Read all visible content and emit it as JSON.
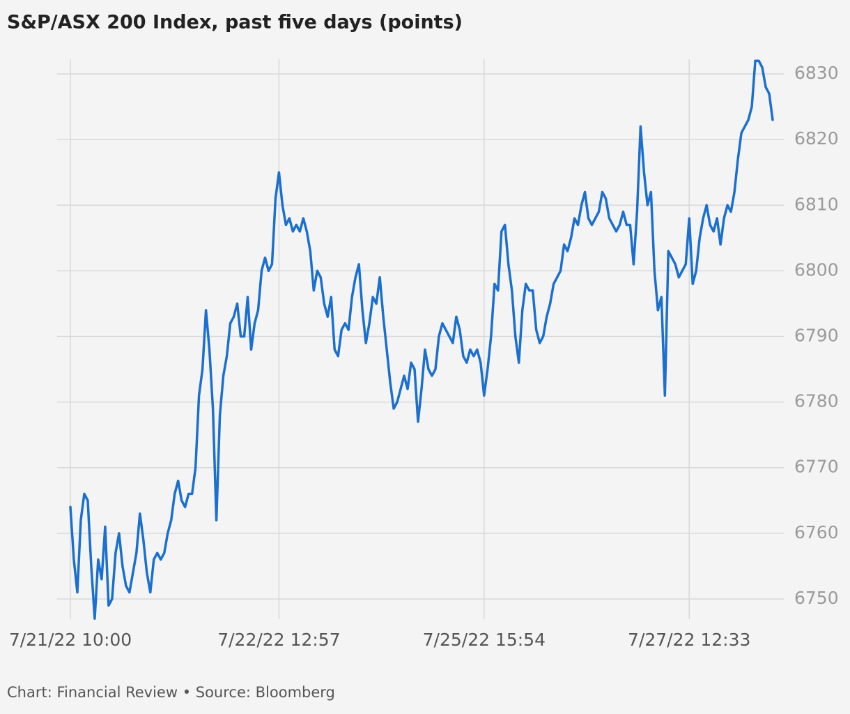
{
  "chart_data": {
    "type": "line",
    "title": "S&P/ASX 200 Index, past five days (points)",
    "footer": "Chart: Financial Review • Source: Bloomberg",
    "color": "#1a6fcf",
    "grid": true,
    "ylim": [
      6746,
      6833
    ],
    "yticks": [
      6750,
      6760,
      6770,
      6780,
      6790,
      6800,
      6810,
      6820,
      6830
    ],
    "categories": [
      "7/21/22 10:00",
      null,
      null,
      null,
      null,
      null,
      null,
      null,
      null,
      null,
      null,
      null,
      null,
      null,
      null,
      null,
      null,
      null,
      null,
      null,
      null,
      null,
      null,
      null,
      null,
      null,
      null,
      null,
      null,
      null,
      null,
      null,
      null,
      null,
      null,
      null,
      null,
      null,
      null,
      null,
      null,
      null,
      null,
      null,
      null,
      null,
      null,
      null,
      null,
      null,
      null,
      null,
      null,
      null,
      null,
      null,
      null,
      null,
      null,
      null,
      "7/22/22 12:57",
      null,
      null,
      null,
      null,
      null,
      null,
      null,
      null,
      null,
      null,
      null,
      null,
      null,
      null,
      null,
      null,
      null,
      null,
      null,
      null,
      null,
      null,
      null,
      null,
      null,
      null,
      null,
      null,
      null,
      null,
      null,
      null,
      null,
      null,
      null,
      null,
      null,
      null,
      null,
      null,
      null,
      null,
      null,
      null,
      null,
      null,
      null,
      null,
      null,
      null,
      null,
      null,
      null,
      null,
      null,
      null,
      null,
      null,
      "7/25/22 15:54",
      null,
      null,
      null,
      null,
      null,
      null,
      null,
      null,
      null,
      null,
      null,
      null,
      null,
      null,
      null,
      null,
      null,
      null,
      null,
      null,
      null,
      null,
      null,
      null,
      null,
      null,
      null,
      null,
      null,
      null,
      null,
      null,
      null,
      null,
      null,
      null,
      null,
      null,
      null,
      null,
      null,
      null,
      null,
      null,
      null,
      null,
      null,
      null,
      null,
      null,
      null,
      null,
      null,
      null,
      null,
      null,
      null,
      null,
      "7/27/22 12:33",
      null,
      null,
      null,
      null,
      null,
      null,
      null,
      null,
      null,
      null,
      null,
      null,
      null,
      null,
      null,
      null,
      null,
      null,
      null,
      null,
      null,
      null,
      null,
      null
    ],
    "values": [
      6764,
      6756,
      6751,
      6762,
      6766,
      6765,
      6755,
      6747,
      6756,
      6753,
      6761,
      6749,
      6750,
      6757,
      6760,
      6755,
      6752,
      6751,
      6754,
      6757,
      6763,
      6759,
      6754,
      6751,
      6756,
      6757,
      6756,
      6757,
      6760,
      6762,
      6766,
      6768,
      6765,
      6764,
      6766,
      6766,
      6770,
      6781,
      6785,
      6794,
      6788,
      6779,
      6762,
      6778,
      6784,
      6787,
      6792,
      6793,
      6795,
      6790,
      6790,
      6796,
      6788,
      6792,
      6794,
      6800,
      6802,
      6800,
      6801,
      6811,
      6815,
      6810,
      6807,
      6808,
      6806,
      6807,
      6806,
      6808,
      6806,
      6803,
      6797,
      6800,
      6799,
      6795,
      6793,
      6796,
      6788,
      6787,
      6791,
      6792,
      6791,
      6796,
      6799,
      6801,
      6794,
      6789,
      6792,
      6796,
      6795,
      6799,
      6793,
      6788,
      6783,
      6779,
      6780,
      6782,
      6784,
      6782,
      6786,
      6785,
      6777,
      6782,
      6788,
      6785,
      6784,
      6785,
      6790,
      6792,
      6791,
      6790,
      6789,
      6793,
      6791,
      6787,
      6786,
      6788,
      6787,
      6788,
      6786,
      6781,
      6785,
      6790,
      6798,
      6797,
      6806,
      6807,
      6801,
      6797,
      6790,
      6786,
      6794,
      6798,
      6797,
      6797,
      6791,
      6789,
      6790,
      6793,
      6795,
      6798,
      6799,
      6800,
      6804,
      6803,
      6805,
      6808,
      6807,
      6810,
      6812,
      6808,
      6807,
      6808,
      6809,
      6812,
      6811,
      6808,
      6807,
      6806,
      6807,
      6809,
      6807,
      6807,
      6801,
      6809,
      6822,
      6815,
      6810,
      6812,
      6800,
      6794,
      6796,
      6781,
      6803,
      6802,
      6801,
      6799,
      6800,
      6801,
      6808,
      6798,
      6800,
      6805,
      6808,
      6810,
      6807,
      6806,
      6808,
      6804,
      6808,
      6810,
      6809,
      6812,
      6817,
      6821,
      6822,
      6823,
      6825,
      6832,
      6832,
      6831,
      6828,
      6827,
      6823
    ]
  }
}
